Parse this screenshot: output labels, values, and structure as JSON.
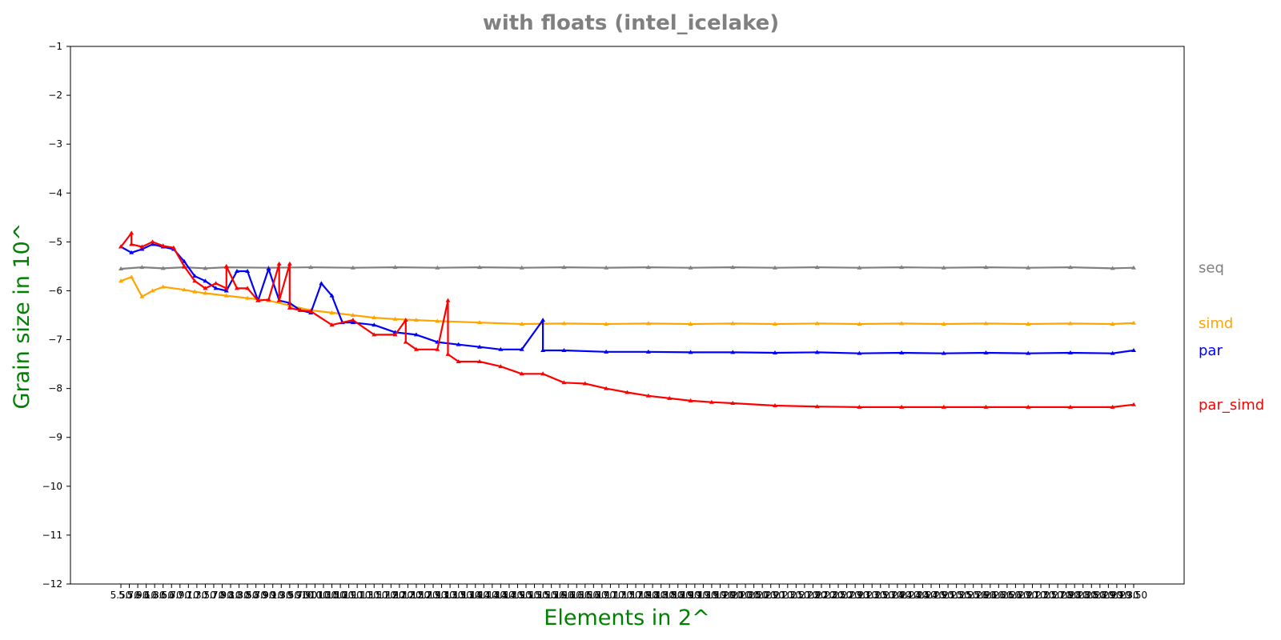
{
  "chart_data": {
    "type": "line",
    "title": "with floats  (intel_icelake)",
    "xlabel": "Elements in 2^",
    "ylabel": "Grain size in 10^",
    "xlim": [
      5.5,
      29.5
    ],
    "ylim": [
      -12,
      -1
    ],
    "y_ticks": [
      -12,
      -11,
      -10,
      -9,
      -8,
      -7,
      -6,
      -5,
      -4,
      -3,
      -2,
      -1
    ],
    "x_tick_step": 0.2,
    "grid": false,
    "legend": "series labels at right end of lines",
    "colors": {
      "title": "#808080",
      "axis_labels": "#008000",
      "seq": "#808080",
      "simd": "#ffa500",
      "par": "#0000ff",
      "par_simd": "#ff0000"
    },
    "series": [
      {
        "name": "seq",
        "color": "#808080",
        "points": [
          [
            5.5,
            -5.55
          ],
          [
            6.0,
            -5.52
          ],
          [
            6.5,
            -5.54
          ],
          [
            7.0,
            -5.52
          ],
          [
            7.5,
            -5.54
          ],
          [
            8.0,
            -5.52
          ],
          [
            9.0,
            -5.53
          ],
          [
            10.0,
            -5.52
          ],
          [
            11.0,
            -5.53
          ],
          [
            12.0,
            -5.52
          ],
          [
            13.0,
            -5.53
          ],
          [
            14.0,
            -5.52
          ],
          [
            15.0,
            -5.53
          ],
          [
            16.0,
            -5.52
          ],
          [
            17.0,
            -5.53
          ],
          [
            18.0,
            -5.52
          ],
          [
            19.0,
            -5.53
          ],
          [
            20.0,
            -5.52
          ],
          [
            21.0,
            -5.53
          ],
          [
            22.0,
            -5.52
          ],
          [
            23.0,
            -5.53
          ],
          [
            24.0,
            -5.52
          ],
          [
            25.0,
            -5.53
          ],
          [
            26.0,
            -5.52
          ],
          [
            27.0,
            -5.53
          ],
          [
            28.0,
            -5.52
          ],
          [
            29.0,
            -5.54
          ],
          [
            29.5,
            -5.53
          ]
        ]
      },
      {
        "name": "simd",
        "color": "#ffa500",
        "points": [
          [
            5.5,
            -5.8
          ],
          [
            5.75,
            -5.72
          ],
          [
            6.0,
            -6.12
          ],
          [
            6.25,
            -6.0
          ],
          [
            6.5,
            -5.92
          ],
          [
            7.0,
            -5.98
          ],
          [
            7.25,
            -6.02
          ],
          [
            7.5,
            -6.05
          ],
          [
            8.0,
            -6.1
          ],
          [
            8.5,
            -6.15
          ],
          [
            9.0,
            -6.2
          ],
          [
            9.5,
            -6.3
          ],
          [
            10.0,
            -6.4
          ],
          [
            10.5,
            -6.45
          ],
          [
            11.0,
            -6.5
          ],
          [
            11.5,
            -6.55
          ],
          [
            12.0,
            -6.58
          ],
          [
            12.5,
            -6.6
          ],
          [
            13.0,
            -6.62
          ],
          [
            14.0,
            -6.65
          ],
          [
            15.0,
            -6.68
          ],
          [
            16.0,
            -6.67
          ],
          [
            17.0,
            -6.68
          ],
          [
            18.0,
            -6.67
          ],
          [
            19.0,
            -6.68
          ],
          [
            20.0,
            -6.67
          ],
          [
            21.0,
            -6.68
          ],
          [
            22.0,
            -6.67
          ],
          [
            23.0,
            -6.68
          ],
          [
            24.0,
            -6.67
          ],
          [
            25.0,
            -6.68
          ],
          [
            26.0,
            -6.67
          ],
          [
            27.0,
            -6.68
          ],
          [
            28.0,
            -6.67
          ],
          [
            29.0,
            -6.68
          ],
          [
            29.5,
            -6.66
          ]
        ]
      },
      {
        "name": "par",
        "color": "#0000ff",
        "points": [
          [
            5.5,
            -5.1
          ],
          [
            5.75,
            -5.22
          ],
          [
            6.0,
            -5.15
          ],
          [
            6.25,
            -5.05
          ],
          [
            6.5,
            -5.1
          ],
          [
            6.75,
            -5.15
          ],
          [
            7.0,
            -5.4
          ],
          [
            7.25,
            -5.7
          ],
          [
            7.5,
            -5.8
          ],
          [
            7.75,
            -5.95
          ],
          [
            8.0,
            -6.0
          ],
          [
            8.25,
            -5.6
          ],
          [
            8.5,
            -5.6
          ],
          [
            8.75,
            -6.2
          ],
          [
            9.0,
            -5.55
          ],
          [
            9.25,
            -6.2
          ],
          [
            9.5,
            -6.25
          ],
          [
            9.75,
            -6.4
          ],
          [
            10.0,
            -6.45
          ],
          [
            10.25,
            -5.85
          ],
          [
            10.5,
            -6.1
          ],
          [
            10.75,
            -6.65
          ],
          [
            11.0,
            -6.65
          ],
          [
            11.5,
            -6.7
          ],
          [
            12.0,
            -6.85
          ],
          [
            12.5,
            -6.9
          ],
          [
            13.0,
            -7.05
          ],
          [
            13.5,
            -7.1
          ],
          [
            14.0,
            -7.15
          ],
          [
            14.5,
            -7.2
          ],
          [
            15.0,
            -7.2
          ],
          [
            15.5,
            -6.6
          ],
          [
            15.5,
            -7.22
          ],
          [
            16.0,
            -7.22
          ],
          [
            17.0,
            -7.25
          ],
          [
            18.0,
            -7.25
          ],
          [
            19.0,
            -7.26
          ],
          [
            20.0,
            -7.26
          ],
          [
            21.0,
            -7.27
          ],
          [
            22.0,
            -7.26
          ],
          [
            23.0,
            -7.28
          ],
          [
            24.0,
            -7.27
          ],
          [
            25.0,
            -7.28
          ],
          [
            26.0,
            -7.27
          ],
          [
            27.0,
            -7.28
          ],
          [
            28.0,
            -7.27
          ],
          [
            29.0,
            -7.28
          ],
          [
            29.5,
            -7.22
          ]
        ]
      },
      {
        "name": "par_simd",
        "color": "#ff0000",
        "points": [
          [
            5.5,
            -5.1
          ],
          [
            5.75,
            -4.82
          ],
          [
            5.75,
            -5.05
          ],
          [
            6.0,
            -5.1
          ],
          [
            6.25,
            -5.0
          ],
          [
            6.5,
            -5.08
          ],
          [
            6.75,
            -5.12
          ],
          [
            7.0,
            -5.5
          ],
          [
            7.25,
            -5.8
          ],
          [
            7.5,
            -5.95
          ],
          [
            7.75,
            -5.85
          ],
          [
            8.0,
            -5.95
          ],
          [
            8.0,
            -5.5
          ],
          [
            8.25,
            -5.95
          ],
          [
            8.5,
            -5.95
          ],
          [
            8.75,
            -6.2
          ],
          [
            9.0,
            -6.18
          ],
          [
            9.25,
            -5.45
          ],
          [
            9.25,
            -6.2
          ],
          [
            9.5,
            -5.45
          ],
          [
            9.5,
            -6.35
          ],
          [
            9.75,
            -6.4
          ],
          [
            10.0,
            -6.42
          ],
          [
            10.5,
            -6.7
          ],
          [
            11.0,
            -6.6
          ],
          [
            11.5,
            -6.9
          ],
          [
            12.0,
            -6.9
          ],
          [
            12.25,
            -6.6
          ],
          [
            12.25,
            -7.05
          ],
          [
            12.5,
            -7.2
          ],
          [
            13.0,
            -7.2
          ],
          [
            13.25,
            -6.2
          ],
          [
            13.25,
            -7.3
          ],
          [
            13.5,
            -7.45
          ],
          [
            14.0,
            -7.45
          ],
          [
            14.5,
            -7.55
          ],
          [
            15.0,
            -7.7
          ],
          [
            15.5,
            -7.7
          ],
          [
            16.0,
            -7.88
          ],
          [
            16.5,
            -7.9
          ],
          [
            17.0,
            -8.0
          ],
          [
            17.5,
            -8.08
          ],
          [
            18.0,
            -8.15
          ],
          [
            18.5,
            -8.2
          ],
          [
            19.0,
            -8.25
          ],
          [
            19.5,
            -8.28
          ],
          [
            20.0,
            -8.3
          ],
          [
            21.0,
            -8.35
          ],
          [
            22.0,
            -8.37
          ],
          [
            23.0,
            -8.38
          ],
          [
            24.0,
            -8.38
          ],
          [
            25.0,
            -8.38
          ],
          [
            26.0,
            -8.38
          ],
          [
            27.0,
            -8.38
          ],
          [
            28.0,
            -8.38
          ],
          [
            29.0,
            -8.38
          ],
          [
            29.5,
            -8.33
          ]
        ]
      }
    ]
  }
}
